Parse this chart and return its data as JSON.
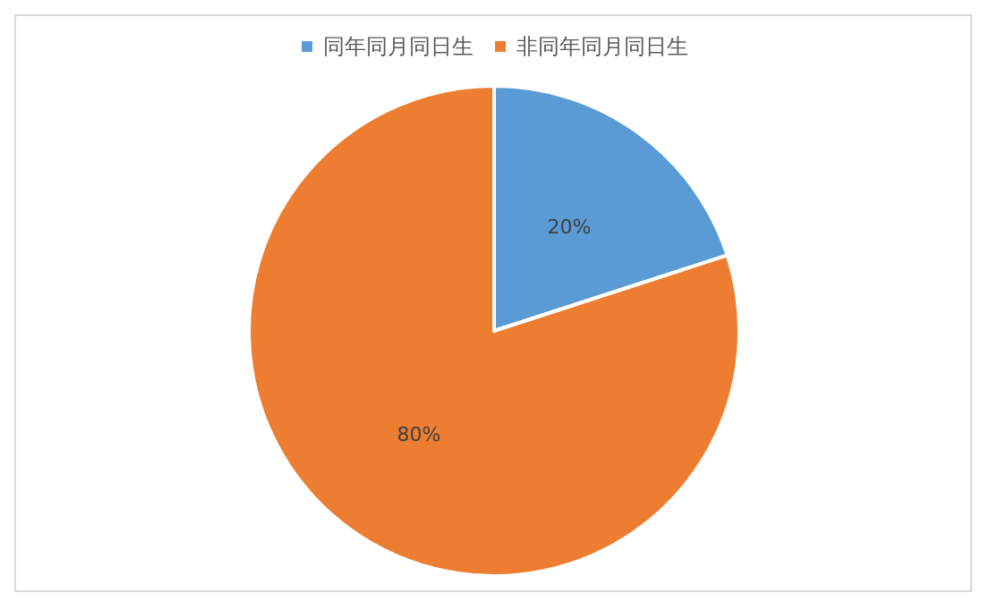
{
  "chart_data": {
    "type": "pie",
    "categories": [
      "同年同月同日生",
      "非同年同月同日生"
    ],
    "values": [
      20,
      80
    ],
    "colors": [
      "#5b9bd5",
      "#ed7d31"
    ],
    "value_labels": [
      "20%",
      "80%"
    ],
    "legend": "top"
  }
}
